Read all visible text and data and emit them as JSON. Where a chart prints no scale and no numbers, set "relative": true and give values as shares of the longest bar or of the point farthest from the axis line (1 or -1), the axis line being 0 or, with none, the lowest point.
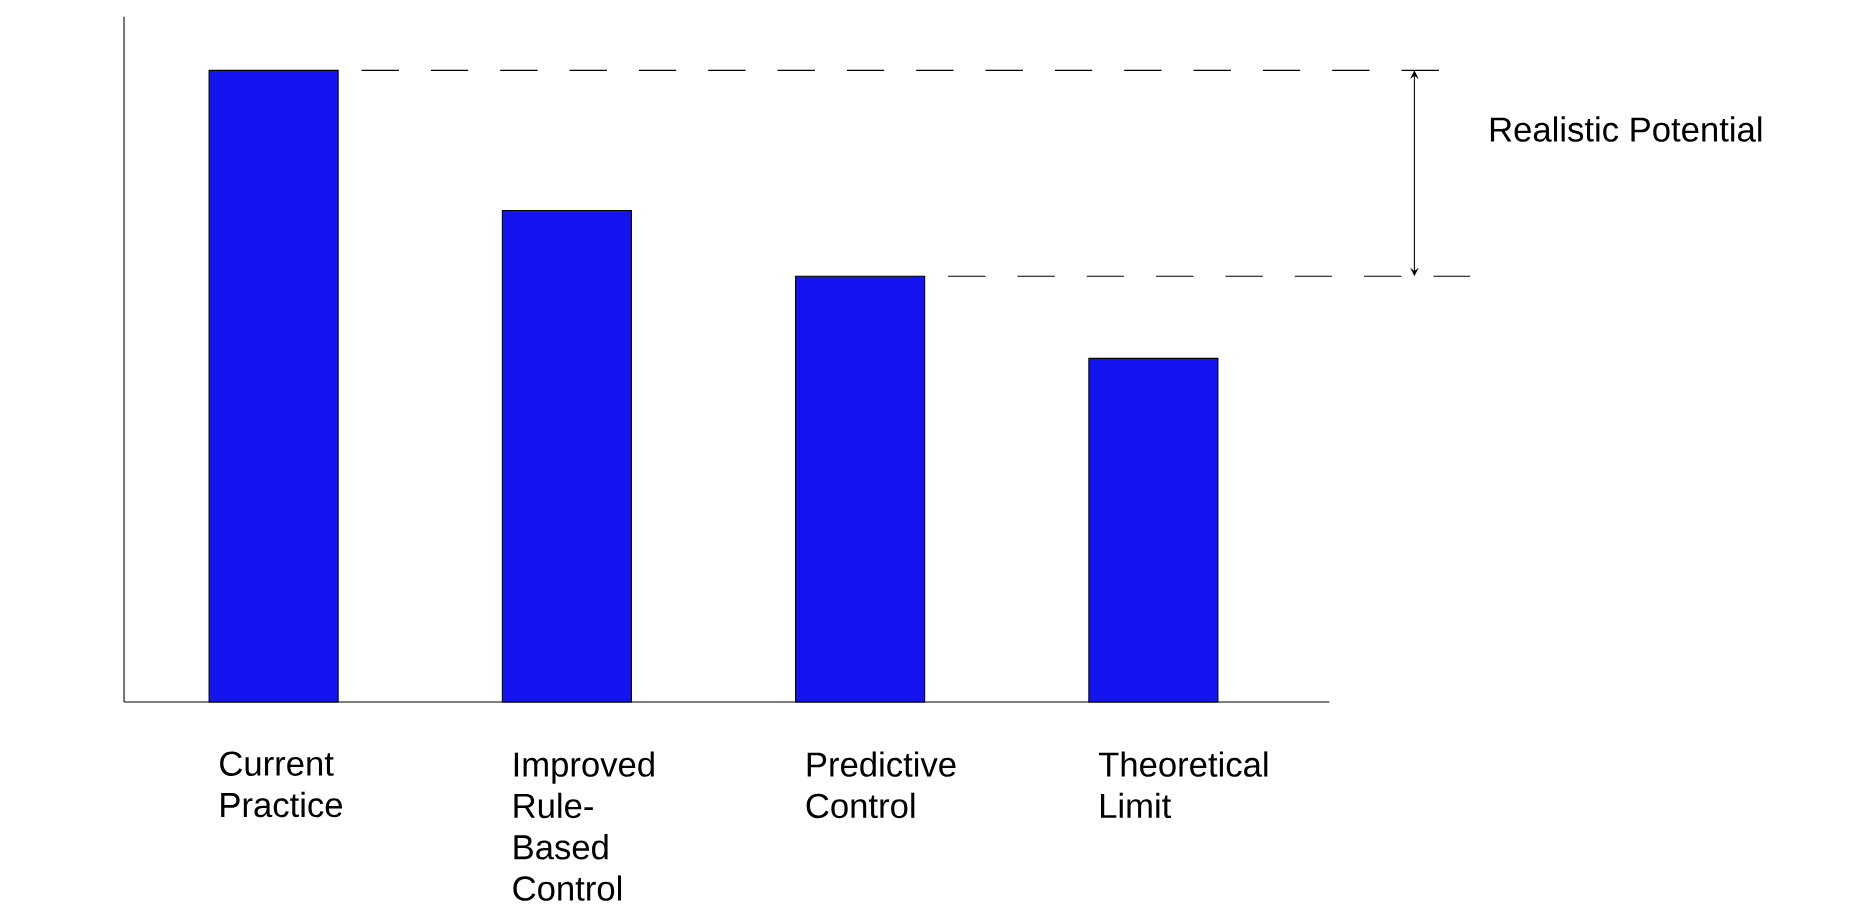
{
  "chart_data": {
    "type": "bar",
    "relative": true,
    "categories": [
      "Current Practice",
      "Improved Rule-Based Control",
      "Predictive Control",
      "Theoretical Limit"
    ],
    "values": [
      1,
      0.778,
      0.674,
      0.544
    ],
    "color": "#1414f0",
    "ref_lines": [
      {
        "axis": "y",
        "value": 1,
        "line_style": "dashed"
      },
      {
        "axis": "y",
        "value": 0.674,
        "line_style": "dashed"
      }
    ],
    "annotations": [
      "Realistic Potential"
    ]
  }
}
